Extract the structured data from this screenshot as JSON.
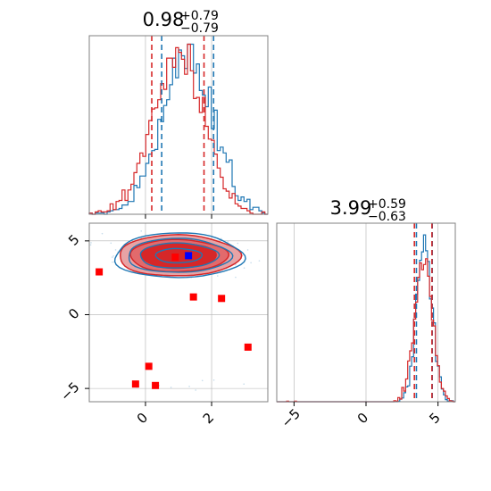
{
  "chart_data": {
    "type": "corner",
    "colors": {
      "blue": "#1f77b4",
      "red": "#d62728",
      "red_fill": "#e8a3a5",
      "blue_marker": "#0000ff",
      "red_marker": "#ff0000",
      "grid": "#b0b0b0",
      "axis": "#808080"
    },
    "params": [
      {
        "title_value": "0.98",
        "title_plus": "+0.79",
        "title_minus": "−0.79",
        "range": [
          -1.7,
          3.7
        ],
        "ticks": [
          0,
          2
        ],
        "tick_labels": [
          "0",
          "2"
        ],
        "red_quantiles": [
          0.19,
          1.77
        ],
        "blue_quantiles": [
          0.49,
          2.06
        ]
      },
      {
        "title_value": "3.99",
        "title_plus": "+0.59",
        "title_minus": "−0.63",
        "range": [
          -6.2,
          6.2
        ],
        "ticks": [
          -5,
          0,
          5
        ],
        "tick_labels": [
          "−5",
          "0",
          "5"
        ],
        "red_quantiles": [
          3.36,
          4.58
        ],
        "blue_quantiles": [
          3.5,
          4.6
        ]
      }
    ],
    "joint": {
      "xrange": [
        -1.7,
        3.7
      ],
      "yrange": [
        -5.9,
        6.2
      ],
      "xticks": [
        0,
        2
      ],
      "yticks": [
        -5,
        0,
        5
      ],
      "ytick_labels": [
        "−5",
        "0",
        "5"
      ],
      "red_markers": [
        [
          -1.4,
          2.9
        ],
        [
          0.9,
          3.9
        ],
        [
          1.45,
          1.2
        ],
        [
          2.3,
          1.1
        ],
        [
          3.1,
          -2.2
        ],
        [
          0.1,
          -3.5
        ],
        [
          -0.3,
          -4.7
        ],
        [
          0.3,
          -4.8
        ]
      ],
      "blue_marker": [
        1.3,
        4.0
      ],
      "center": [
        1.0,
        4.0
      ]
    }
  }
}
